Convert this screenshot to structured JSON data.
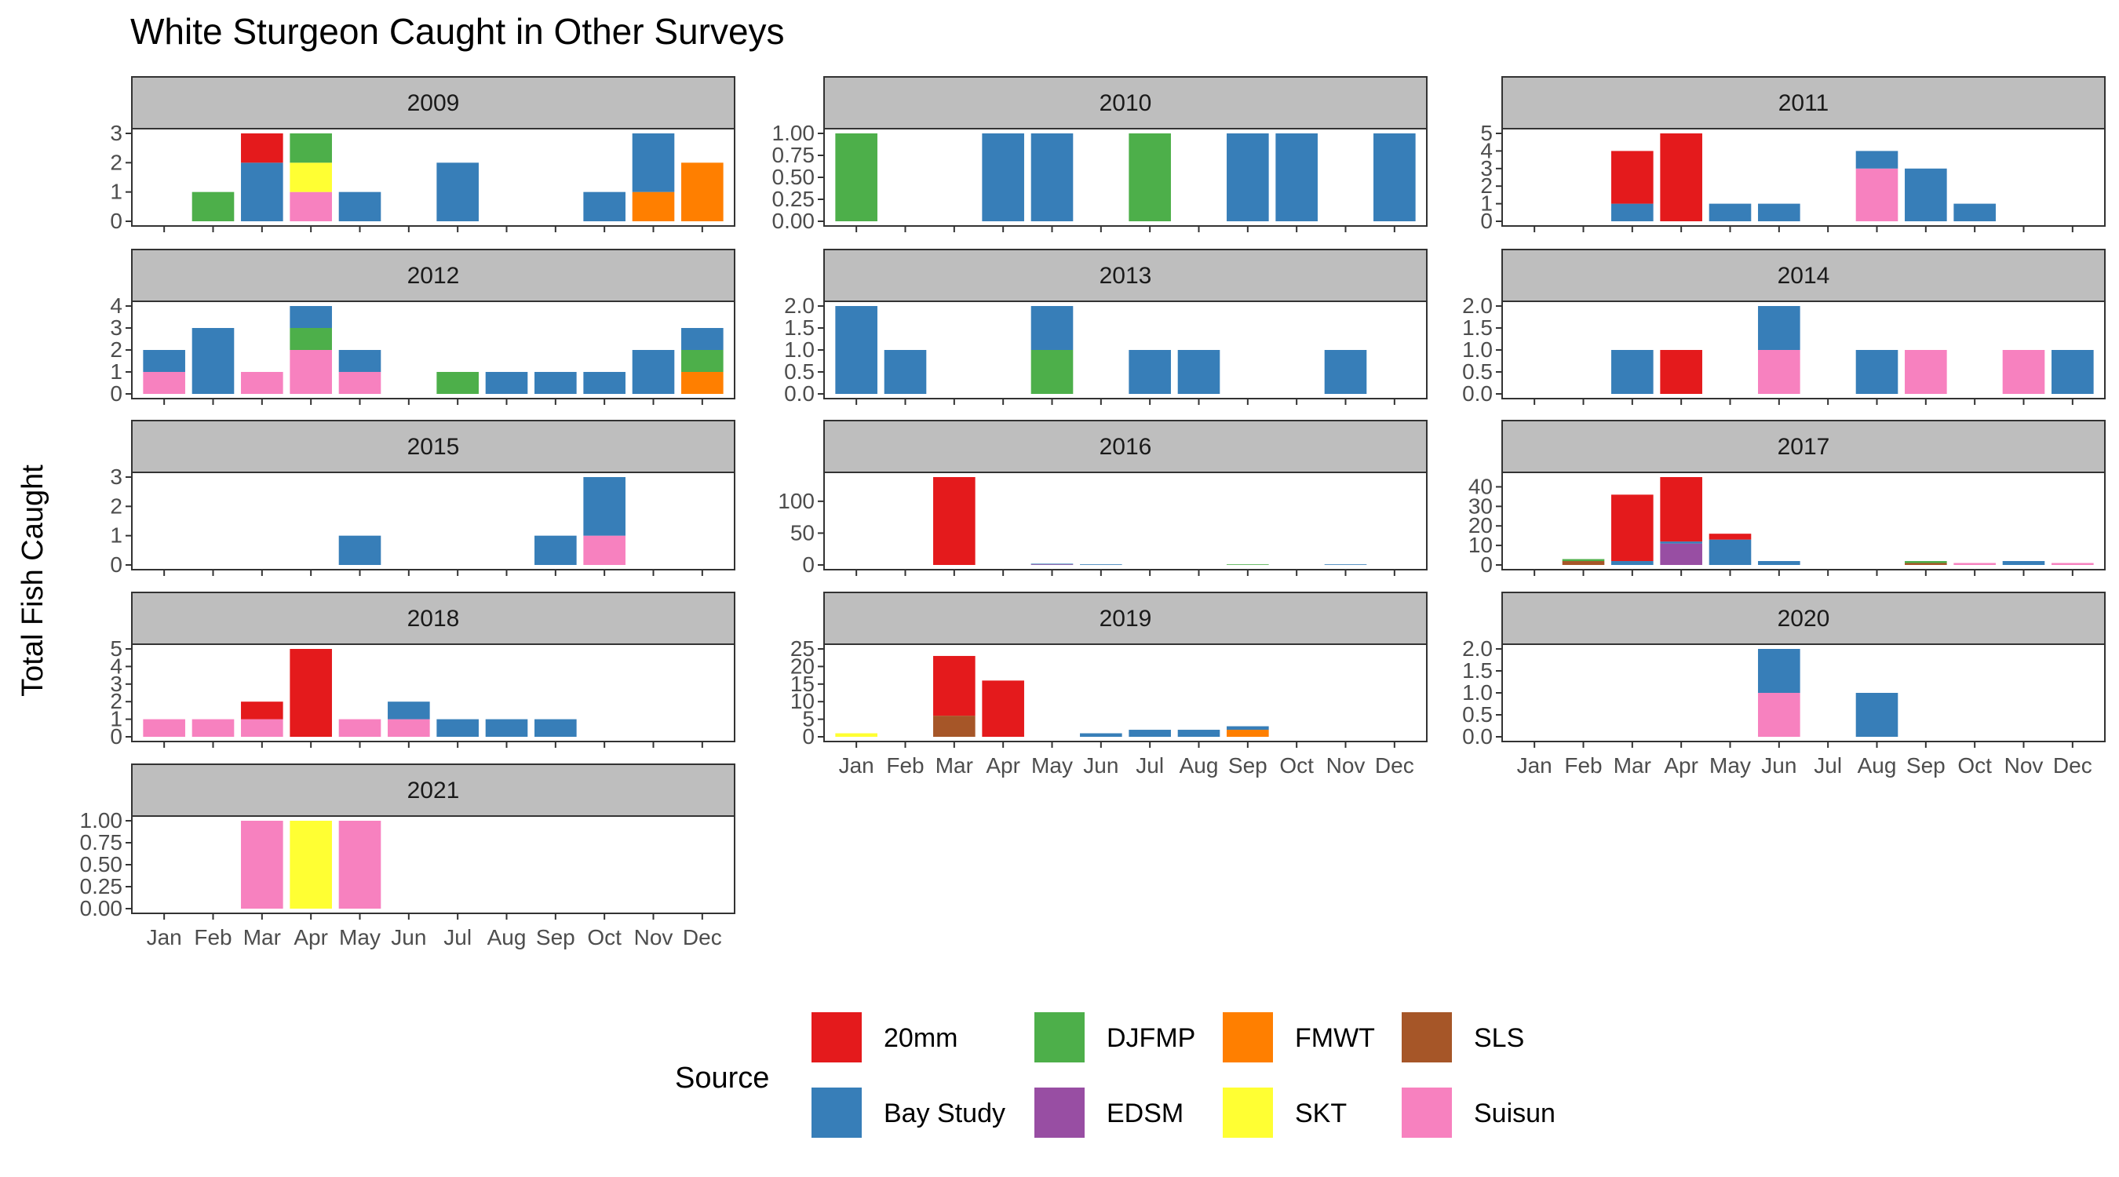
{
  "chart_data": {
    "type": "bar",
    "stacked": true,
    "title": "White Sturgeon Caught in Other Surveys",
    "ylabel": "Total Fish Caught",
    "xlabel": "",
    "legend": {
      "title": "Source",
      "placement": "bottom",
      "entries": [
        {
          "key": "20mm",
          "label": "20mm",
          "color": "#E41A1C"
        },
        {
          "key": "DJFMP",
          "label": "DJFMP",
          "color": "#4DAF4A"
        },
        {
          "key": "FMWT",
          "label": "FMWT",
          "color": "#FF7F00"
        },
        {
          "key": "SLS",
          "label": "SLS",
          "color": "#A65628"
        },
        {
          "key": "Bay Study",
          "label": "Bay Study",
          "color": "#377EB8"
        },
        {
          "key": "EDSM",
          "label": "EDSM",
          "color": "#984EA3"
        },
        {
          "key": "SKT",
          "label": "SKT",
          "color": "#FFFF33"
        },
        {
          "key": "Suisun",
          "label": "Suisun",
          "color": "#F781BF"
        }
      ]
    },
    "stack_order": [
      "Suisun",
      "EDSM",
      "SLS",
      "FMWT",
      "SKT",
      "DJFMP",
      "Bay Study",
      "20mm"
    ],
    "months": [
      "Jan",
      "Feb",
      "Mar",
      "Apr",
      "May",
      "Jun",
      "Jul",
      "Aug",
      "Sep",
      "Oct",
      "Nov",
      "Dec"
    ],
    "panels": [
      {
        "year": "2009",
        "ylim": [
          0,
          3
        ],
        "yticks": [
          "0",
          "1",
          "2",
          "3"
        ],
        "bars": [
          {
            "month": "Feb",
            "values": {
              "DJFMP": 1
            }
          },
          {
            "month": "Mar",
            "values": {
              "Bay Study": 2,
              "20mm": 1
            }
          },
          {
            "month": "Apr",
            "values": {
              "Suisun": 1,
              "SKT": 1,
              "DJFMP": 1
            }
          },
          {
            "month": "May",
            "values": {
              "Bay Study": 1
            }
          },
          {
            "month": "Jul",
            "values": {
              "Bay Study": 2
            }
          },
          {
            "month": "Oct",
            "values": {
              "Bay Study": 1
            }
          },
          {
            "month": "Nov",
            "values": {
              "FMWT": 1,
              "Bay Study": 2
            }
          },
          {
            "month": "Dec",
            "values": {
              "FMWT": 2
            }
          }
        ]
      },
      {
        "year": "2010",
        "ylim": [
          0,
          1
        ],
        "yticks": [
          "0.00",
          "0.25",
          "0.50",
          "0.75",
          "1.00"
        ],
        "bars": [
          {
            "month": "Jan",
            "values": {
              "DJFMP": 1
            }
          },
          {
            "month": "Apr",
            "values": {
              "Bay Study": 1
            }
          },
          {
            "month": "May",
            "values": {
              "Bay Study": 1
            }
          },
          {
            "month": "Jul",
            "values": {
              "DJFMP": 1
            }
          },
          {
            "month": "Sep",
            "values": {
              "Bay Study": 1
            }
          },
          {
            "month": "Oct",
            "values": {
              "Bay Study": 1
            }
          },
          {
            "month": "Dec",
            "values": {
              "Bay Study": 1
            }
          }
        ]
      },
      {
        "year": "2011",
        "ylim": [
          0,
          5
        ],
        "yticks": [
          "0",
          "1",
          "2",
          "3",
          "4",
          "5"
        ],
        "bars": [
          {
            "month": "Mar",
            "values": {
              "Bay Study": 1,
              "20mm": 3
            }
          },
          {
            "month": "Apr",
            "values": {
              "20mm": 5
            }
          },
          {
            "month": "May",
            "values": {
              "Bay Study": 1
            }
          },
          {
            "month": "Jun",
            "values": {
              "Bay Study": 1
            }
          },
          {
            "month": "Aug",
            "values": {
              "Suisun": 3,
              "Bay Study": 1
            }
          },
          {
            "month": "Sep",
            "values": {
              "Bay Study": 3
            }
          },
          {
            "month": "Oct",
            "values": {
              "Bay Study": 1
            }
          }
        ]
      },
      {
        "year": "2012",
        "ylim": [
          0,
          4
        ],
        "yticks": [
          "0",
          "1",
          "2",
          "3",
          "4"
        ],
        "bars": [
          {
            "month": "Jan",
            "values": {
              "Suisun": 1,
              "Bay Study": 1
            }
          },
          {
            "month": "Feb",
            "values": {
              "Bay Study": 3
            }
          },
          {
            "month": "Mar",
            "values": {
              "Suisun": 1
            }
          },
          {
            "month": "Apr",
            "values": {
              "Suisun": 2,
              "DJFMP": 1,
              "Bay Study": 1
            }
          },
          {
            "month": "May",
            "values": {
              "Suisun": 1,
              "Bay Study": 1
            }
          },
          {
            "month": "Jul",
            "values": {
              "DJFMP": 1
            }
          },
          {
            "month": "Aug",
            "values": {
              "Bay Study": 1
            }
          },
          {
            "month": "Sep",
            "values": {
              "Bay Study": 1
            }
          },
          {
            "month": "Oct",
            "values": {
              "Bay Study": 1
            }
          },
          {
            "month": "Nov",
            "values": {
              "Bay Study": 2
            }
          },
          {
            "month": "Dec",
            "values": {
              "FMWT": 1,
              "DJFMP": 1,
              "Bay Study": 1
            }
          }
        ]
      },
      {
        "year": "2013",
        "ylim": [
          0,
          2
        ],
        "yticks": [
          "0.0",
          "0.5",
          "1.0",
          "1.5",
          "2.0"
        ],
        "bars": [
          {
            "month": "Jan",
            "values": {
              "Bay Study": 2
            }
          },
          {
            "month": "Feb",
            "values": {
              "Bay Study": 1
            }
          },
          {
            "month": "May",
            "values": {
              "DJFMP": 1,
              "Bay Study": 1
            }
          },
          {
            "month": "Jul",
            "values": {
              "Bay Study": 1
            }
          },
          {
            "month": "Aug",
            "values": {
              "Bay Study": 1
            }
          },
          {
            "month": "Nov",
            "values": {
              "Bay Study": 1
            }
          }
        ]
      },
      {
        "year": "2014",
        "ylim": [
          0,
          2
        ],
        "yticks": [
          "0.0",
          "0.5",
          "1.0",
          "1.5",
          "2.0"
        ],
        "bars": [
          {
            "month": "Mar",
            "values": {
              "Bay Study": 1
            }
          },
          {
            "month": "Apr",
            "values": {
              "20mm": 1
            }
          },
          {
            "month": "Jun",
            "values": {
              "Suisun": 1,
              "Bay Study": 1
            }
          },
          {
            "month": "Aug",
            "values": {
              "Bay Study": 1
            }
          },
          {
            "month": "Sep",
            "values": {
              "Suisun": 1
            }
          },
          {
            "month": "Nov",
            "values": {
              "Suisun": 1
            }
          },
          {
            "month": "Dec",
            "values": {
              "Bay Study": 1
            }
          }
        ]
      },
      {
        "year": "2015",
        "ylim": [
          0,
          3
        ],
        "yticks": [
          "0",
          "1",
          "2",
          "3"
        ],
        "bars": [
          {
            "month": "May",
            "values": {
              "Bay Study": 1
            }
          },
          {
            "month": "Sep",
            "values": {
              "Bay Study": 1
            }
          },
          {
            "month": "Oct",
            "values": {
              "Suisun": 1,
              "Bay Study": 2
            }
          }
        ]
      },
      {
        "year": "2016",
        "ylim": [
          0,
          138
        ],
        "yticks": [
          "0",
          "50",
          "100"
        ],
        "bars": [
          {
            "month": "Mar",
            "values": {
              "20mm": 138
            }
          },
          {
            "month": "May",
            "values": {
              "EDSM": 1,
              "Bay Study": 1
            }
          },
          {
            "month": "Jun",
            "values": {
              "Bay Study": 1
            }
          },
          {
            "month": "Sep",
            "values": {
              "DJFMP": 1
            }
          },
          {
            "month": "Nov",
            "values": {
              "Bay Study": 1
            }
          }
        ]
      },
      {
        "year": "2017",
        "ylim": [
          0,
          45
        ],
        "yticks": [
          "0",
          "10",
          "20",
          "30",
          "40"
        ],
        "bars": [
          {
            "month": "Feb",
            "values": {
              "SLS": 2,
              "DJFMP": 1
            }
          },
          {
            "month": "Mar",
            "values": {
              "Bay Study": 2,
              "20mm": 34
            }
          },
          {
            "month": "Apr",
            "values": {
              "EDSM": 11,
              "Bay Study": 1,
              "20mm": 33
            }
          },
          {
            "month": "May",
            "values": {
              "Bay Study": 13,
              "20mm": 3
            }
          },
          {
            "month": "Jun",
            "values": {
              "Bay Study": 2
            }
          },
          {
            "month": "Sep",
            "values": {
              "SLS": 1,
              "DJFMP": 1
            }
          },
          {
            "month": "Oct",
            "values": {
              "Suisun": 1
            }
          },
          {
            "month": "Nov",
            "values": {
              "Bay Study": 2
            }
          },
          {
            "month": "Dec",
            "values": {
              "Suisun": 1
            }
          }
        ]
      },
      {
        "year": "2018",
        "ylim": [
          0,
          5
        ],
        "yticks": [
          "0",
          "1",
          "2",
          "3",
          "4",
          "5"
        ],
        "bars": [
          {
            "month": "Jan",
            "values": {
              "Suisun": 1
            }
          },
          {
            "month": "Feb",
            "values": {
              "Suisun": 1
            }
          },
          {
            "month": "Mar",
            "values": {
              "Suisun": 1,
              "20mm": 1
            }
          },
          {
            "month": "Apr",
            "values": {
              "20mm": 5
            }
          },
          {
            "month": "May",
            "values": {
              "Suisun": 1
            }
          },
          {
            "month": "Jun",
            "values": {
              "Suisun": 1,
              "Bay Study": 1
            }
          },
          {
            "month": "Jul",
            "values": {
              "Bay Study": 1
            }
          },
          {
            "month": "Aug",
            "values": {
              "Bay Study": 1
            }
          },
          {
            "month": "Sep",
            "values": {
              "Bay Study": 1
            }
          }
        ]
      },
      {
        "year": "2019",
        "ylim": [
          0,
          25
        ],
        "yticks": [
          "0",
          "5",
          "10",
          "15",
          "20",
          "25"
        ],
        "bars": [
          {
            "month": "Jan",
            "values": {
              "SKT": 1
            }
          },
          {
            "month": "Mar",
            "values": {
              "SLS": 6,
              "20mm": 17
            }
          },
          {
            "month": "Apr",
            "values": {
              "20mm": 16
            }
          },
          {
            "month": "Jun",
            "values": {
              "Bay Study": 1
            }
          },
          {
            "month": "Jul",
            "values": {
              "Bay Study": 2
            }
          },
          {
            "month": "Aug",
            "values": {
              "Bay Study": 2
            }
          },
          {
            "month": "Sep",
            "values": {
              "FMWT": 2,
              "Bay Study": 1
            }
          }
        ]
      },
      {
        "year": "2020",
        "ylim": [
          0,
          2
        ],
        "yticks": [
          "0.0",
          "0.5",
          "1.0",
          "1.5",
          "2.0"
        ],
        "bars": [
          {
            "month": "Jun",
            "values": {
              "Suisun": 1,
              "Bay Study": 1
            }
          },
          {
            "month": "Aug",
            "values": {
              "Bay Study": 1
            }
          }
        ]
      },
      {
        "year": "2021",
        "ylim": [
          0,
          1
        ],
        "yticks": [
          "0.00",
          "0.25",
          "0.50",
          "0.75",
          "1.00"
        ],
        "bars": [
          {
            "month": "Mar",
            "values": {
              "Suisun": 1
            }
          },
          {
            "month": "Apr",
            "values": {
              "SKT": 1
            }
          },
          {
            "month": "May",
            "values": {
              "Suisun": 1
            }
          }
        ]
      }
    ]
  }
}
